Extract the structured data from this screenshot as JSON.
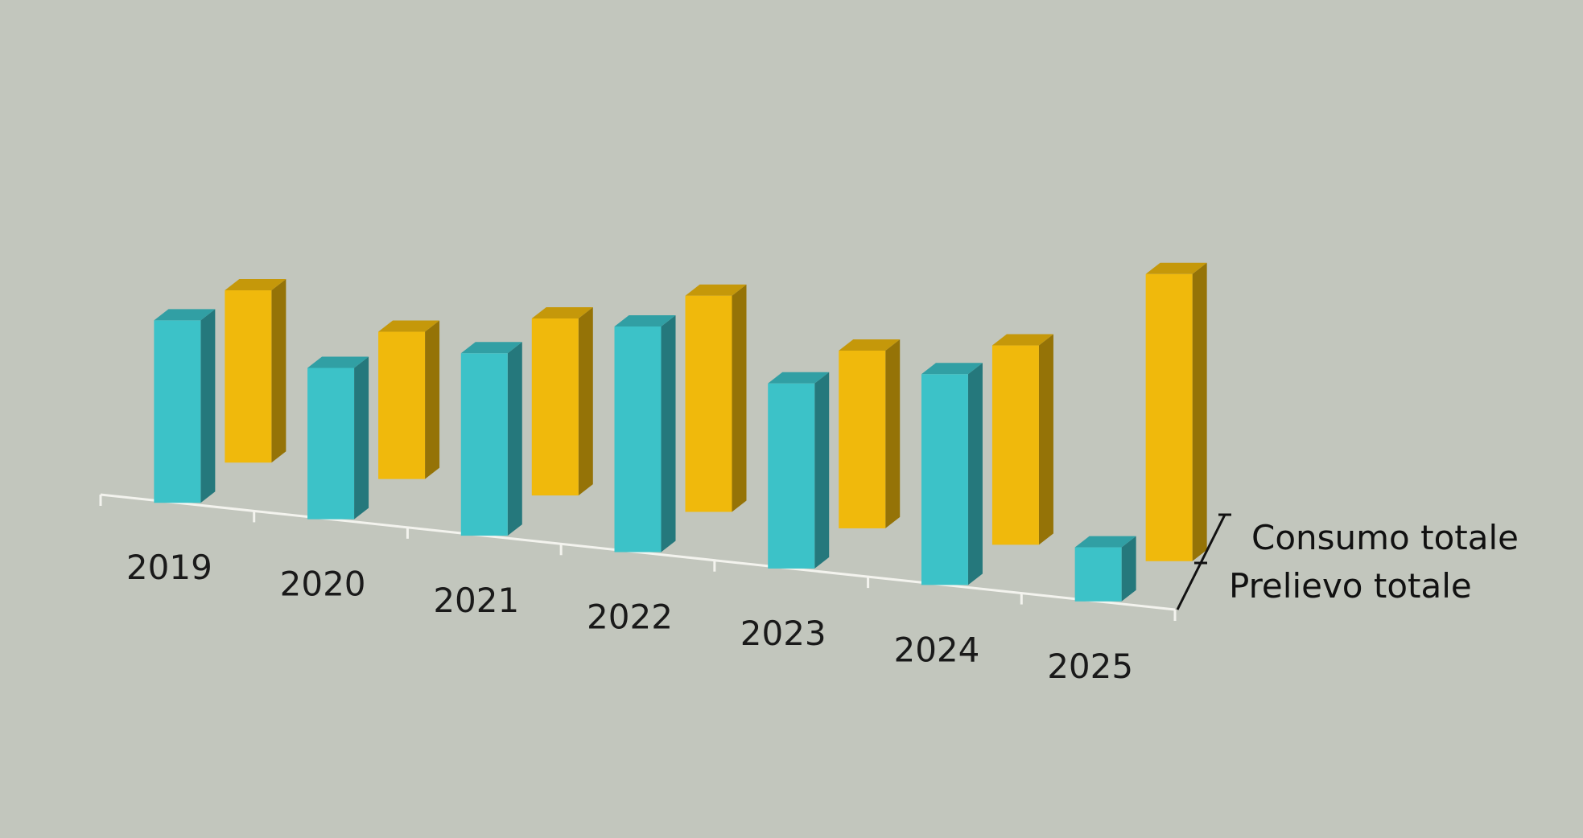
{
  "chart_data": {
    "type": "bar",
    "categories": [
      "2019",
      "2020",
      "2021",
      "2022",
      "2023",
      "2024",
      "2025"
    ],
    "series": [
      {
        "name": "Prelievo totale",
        "color": "#3cc2c8",
        "values": [
          270,
          224,
          270,
          334,
          274,
          312,
          80
        ]
      },
      {
        "name": "Consumo totale",
        "color": "#f0b90c",
        "values": [
          255,
          218,
          262,
          320,
          263,
          295,
          425
        ]
      }
    ],
    "title": "",
    "xlabel": "",
    "ylabel": "",
    "ylim": [
      0,
      450
    ],
    "grid": false,
    "three_d": true,
    "legend": "right"
  }
}
